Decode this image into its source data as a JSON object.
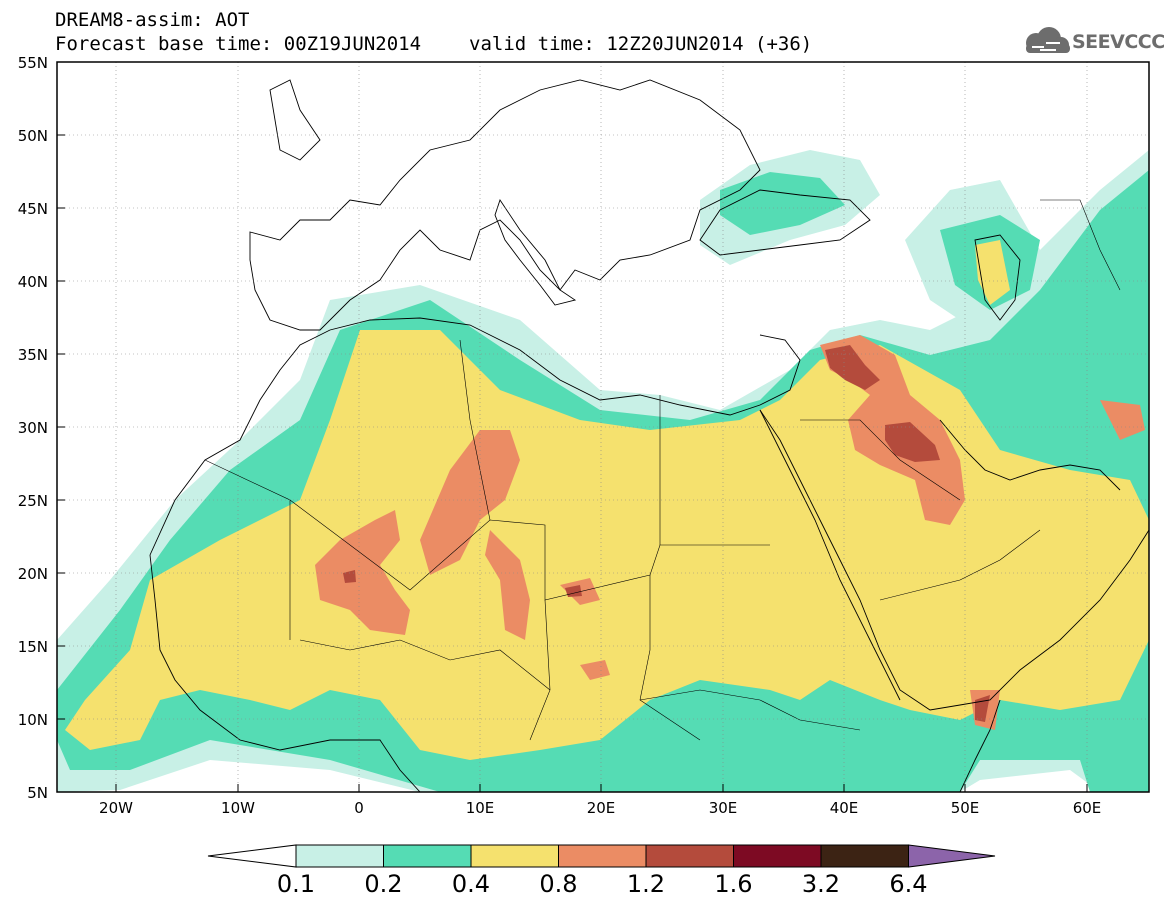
{
  "header": {
    "title": "DREAM8-assim: AOT",
    "base_time": "Forecast base time: 00Z19JUN2014",
    "valid_time": "valid time: 12Z20JUN2014 (+36)"
  },
  "logo": {
    "text": "SEEVCCC",
    "icon": "cloud-icon"
  },
  "map": {
    "variable": "AOT",
    "lat_range": [
      5,
      55
    ],
    "lon_range": [
      -25,
      65
    ],
    "lat_ticks": [
      "55N",
      "50N",
      "45N",
      "40N",
      "35N",
      "30N",
      "25N",
      "20N",
      "15N",
      "10N",
      "5N"
    ],
    "lon_ticks": [
      "20W",
      "10W",
      "0",
      "10E",
      "20E",
      "30E",
      "40E",
      "50E",
      "60E"
    ]
  },
  "colorbar": {
    "levels": [
      "0.1",
      "0.2",
      "0.4",
      "0.8",
      "1.2",
      "1.6",
      "3.2",
      "6.4"
    ],
    "colors": [
      "#c8f0e6",
      "#55dcb4",
      "#f5e16e",
      "#eb8c64",
      "#b44b3c",
      "#7d0a23",
      "#3c2314",
      "#8c64aa"
    ]
  }
}
